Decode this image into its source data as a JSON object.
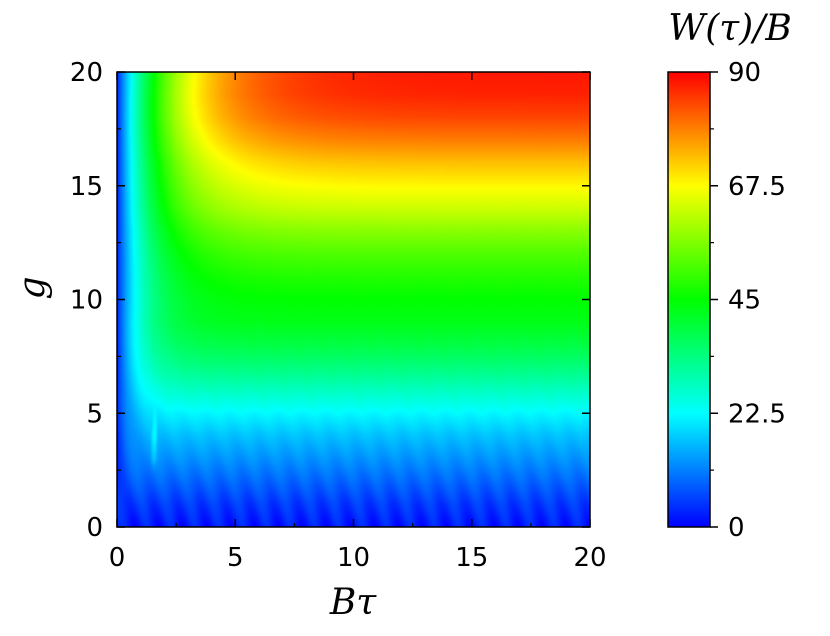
{
  "chart_data": {
    "type": "heatmap",
    "title": "",
    "xlabel": "Bτ",
    "ylabel": "g",
    "xlim": [
      0,
      20
    ],
    "ylim": [
      0,
      20
    ],
    "x_ticks": [
      "0",
      "5",
      "10",
      "15",
      "20"
    ],
    "y_ticks": [
      "0",
      "5",
      "10",
      "15",
      "20"
    ],
    "colorbar": {
      "label": "W(τ)/B",
      "range": [
        0,
        90
      ],
      "ticks": [
        "0",
        "22.5",
        "45",
        "67.5",
        "90"
      ],
      "colormap": [
        "#0000ff",
        "#00ffff",
        "#00ff00",
        "#ffff00",
        "#ff0000"
      ]
    },
    "z_profile_vs_g": {
      "g": [
        0,
        1,
        2,
        3,
        4,
        5,
        6,
        7,
        8,
        9,
        10,
        11,
        12,
        13,
        14,
        15,
        16,
        17,
        18,
        19,
        20
      ],
      "z": [
        2,
        5,
        9,
        13,
        17,
        22,
        28,
        34,
        39,
        43,
        45,
        48,
        52,
        57,
        63,
        68,
        73,
        79,
        84,
        87,
        88
      ]
    },
    "features": {
      "low_B_tau_ridge_B_tau": 1.5,
      "low_B_tau_ridge_value": 22.5
    }
  }
}
